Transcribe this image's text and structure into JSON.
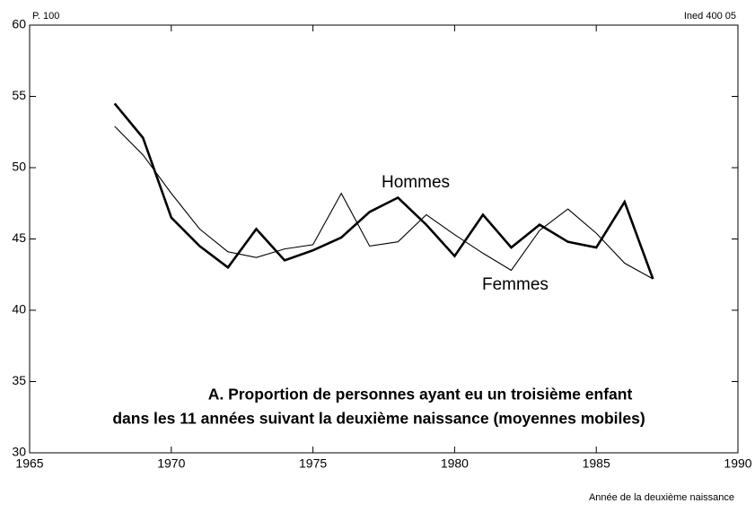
{
  "chart_data": {
    "type": "line",
    "title": [
      "A. Proportion de personnes ayant eu un troisième enfant",
      "dans les 11 années suivant la deuxième naissance (moyennes mobiles)"
    ],
    "y_unit": "P. 100",
    "source": "Ined 400 05",
    "x_label": "Année de la deuxième naissance",
    "x": [
      1968,
      1969,
      1970,
      1971,
      1972,
      1973,
      1974,
      1975,
      1976,
      1977,
      1978,
      1979,
      1980,
      1981,
      1982,
      1983,
      1984,
      1985,
      1986,
      1987
    ],
    "series": [
      {
        "name": "Hommes",
        "color": "#000000",
        "width": 2.6,
        "values": [
          54.5,
          52.1,
          46.5,
          44.5,
          43.0,
          45.7,
          43.5,
          44.2,
          45.1,
          46.9,
          47.9,
          46.0,
          43.8,
          46.7,
          44.4,
          46.0,
          44.8,
          44.4,
          47.6,
          42.2
        ]
      },
      {
        "name": "Femmes",
        "color": "#000000",
        "width": 1.1,
        "values": [
          52.9,
          50.9,
          48.2,
          45.7,
          44.1,
          43.7,
          44.3,
          44.6,
          48.2,
          44.5,
          44.8,
          46.7,
          45.3,
          44.0,
          42.8,
          45.6,
          47.1,
          45.4,
          43.3,
          42.2
        ]
      }
    ],
    "xlim": [
      1965,
      1990
    ],
    "xticks": [
      1965,
      1970,
      1975,
      1980,
      1985,
      1990
    ],
    "ylim": [
      30,
      60
    ],
    "yticks": [
      30,
      35,
      40,
      45,
      50,
      55,
      60
    ],
    "grid": false
  }
}
